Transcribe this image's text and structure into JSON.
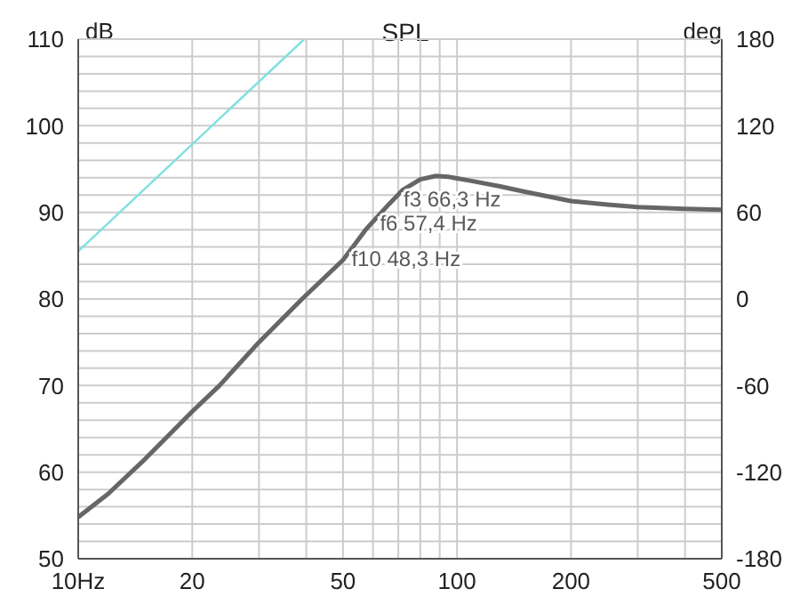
{
  "chart_data": {
    "type": "line",
    "title": "SPL",
    "ylabel": "dB",
    "y2label": "deg",
    "log": "x",
    "grid": true,
    "xlim": [
      10,
      500
    ],
    "xticks": [
      {
        "value": 10,
        "label": "10Hz"
      },
      20,
      {
        "value": 30,
        "label": null
      },
      {
        "value": 40,
        "label": null
      },
      50,
      {
        "value": 60,
        "label": null
      },
      {
        "value": 70,
        "label": null
      },
      {
        "value": 80,
        "label": null
      },
      {
        "value": 90,
        "label": null
      },
      100,
      200,
      {
        "value": 300,
        "label": null
      },
      {
        "value": 400,
        "label": null
      },
      500
    ],
    "ylim": [
      50,
      110
    ],
    "yticks": [
      50,
      {
        "value": 52,
        "label": null
      },
      {
        "value": 54,
        "label": null
      },
      {
        "value": 56,
        "label": null
      },
      {
        "value": 58,
        "label": null
      },
      60,
      {
        "value": 62,
        "label": null
      },
      {
        "value": 64,
        "label": null
      },
      {
        "value": 66,
        "label": null
      },
      {
        "value": 68,
        "label": null
      },
      70,
      {
        "value": 72,
        "label": null
      },
      {
        "value": 74,
        "label": null
      },
      {
        "value": 76,
        "label": null
      },
      {
        "value": 78,
        "label": null
      },
      80,
      {
        "value": 82,
        "label": null
      },
      {
        "value": 84,
        "label": null
      },
      {
        "value": 86,
        "label": null
      },
      {
        "value": 88,
        "label": null
      },
      90,
      {
        "value": 92,
        "label": null
      },
      {
        "value": 94,
        "label": null
      },
      {
        "value": 96,
        "label": null
      },
      {
        "value": 98,
        "label": null
      },
      100,
      {
        "value": 102,
        "label": null
      },
      {
        "value": 104,
        "label": null
      },
      {
        "value": 106,
        "label": null
      },
      {
        "value": 108,
        "label": null
      },
      110
    ],
    "y2lim": [
      -180,
      180
    ],
    "y2ticks": [
      -180,
      -120,
      -60,
      0,
      60,
      120,
      180
    ],
    "series": [
      {
        "color": "#666666",
        "x": [
          10,
          12,
          15,
          20,
          23.6,
          30,
          39,
          50,
          57.4,
          66.3,
          72,
          80,
          88,
          95,
          110,
          130,
          150,
          200,
          250,
          300,
          400,
          500
        ],
        "values": [
          54.8,
          57.5,
          61.5,
          67,
          70,
          75,
          80,
          84.5,
          88,
          91,
          92.6,
          93.8,
          94.2,
          94.1,
          93.6,
          93,
          92.4,
          91.3,
          90.9,
          90.6,
          90.4,
          90.3
        ]
      },
      {
        "color": "#7fe0e0",
        "axis": "y2",
        "x": [
          10,
          39.5
        ],
        "values": [
          33,
          180
        ]
      }
    ],
    "annotations": [
      {
        "text": "f3 66,3 Hz",
        "x": 66.3,
        "y": 91.6
      },
      {
        "text": "f6 57,4 Hz",
        "x": 57.4,
        "y": 88.8
      },
      {
        "text": "f10 48,3 Hz",
        "x": 48.3,
        "y": 84.7
      }
    ]
  }
}
